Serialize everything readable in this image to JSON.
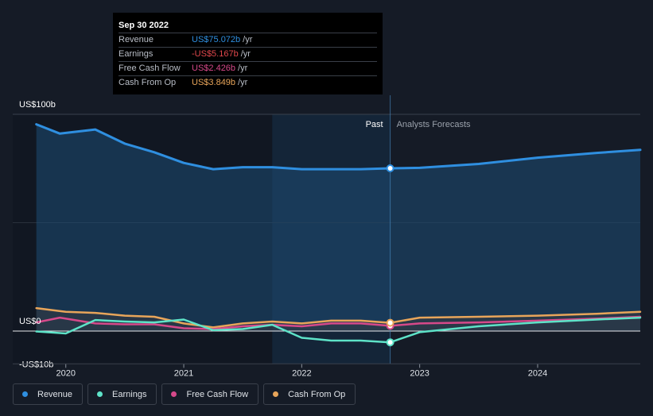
{
  "chart_data": {
    "type": "line",
    "y_axis_labels": [
      "US$100b",
      "US$0",
      "-US$10b"
    ],
    "ylim": [
      -10,
      100
    ],
    "region_labels": {
      "past": "Past",
      "forecast": "Analysts Forecasts"
    },
    "x_ticks": [
      {
        "label": "2020",
        "value": 2020.0
      },
      {
        "label": "2021",
        "value": 2021.0
      },
      {
        "label": "2022",
        "value": 2022.0
      },
      {
        "label": "2023",
        "value": 2023.0
      },
      {
        "label": "2024",
        "value": 2024.0
      }
    ],
    "xlim": [
      2019.55,
      2024.87
    ],
    "past_end": 2022.75,
    "highlight_start": 2021.75,
    "series": [
      {
        "name": "Revenue",
        "color": "#2f8fe0",
        "fill": true,
        "points": [
          [
            2019.75,
            95.4
          ],
          [
            2019.95,
            91.1
          ],
          [
            2020.25,
            93.0
          ],
          [
            2020.5,
            86.5
          ],
          [
            2020.75,
            82.5
          ],
          [
            2021.0,
            77.6
          ],
          [
            2021.25,
            74.7
          ],
          [
            2021.5,
            75.6
          ],
          [
            2021.75,
            75.6
          ],
          [
            2022.0,
            74.7
          ],
          [
            2022.25,
            74.7
          ],
          [
            2022.5,
            74.7
          ],
          [
            2022.75,
            75.1
          ],
          [
            2023.0,
            75.3
          ],
          [
            2023.5,
            77.1
          ],
          [
            2024.0,
            80.0
          ],
          [
            2024.5,
            82.2
          ],
          [
            2024.87,
            83.6
          ]
        ]
      },
      {
        "name": "Earnings",
        "color": "#5ee3c8",
        "points": [
          [
            2019.75,
            -0.2
          ],
          [
            2020.0,
            -1.1
          ],
          [
            2020.25,
            5.1
          ],
          [
            2020.5,
            4.4
          ],
          [
            2020.75,
            4.0
          ],
          [
            2021.0,
            5.3
          ],
          [
            2021.25,
            0.4
          ],
          [
            2021.5,
            0.9
          ],
          [
            2021.75,
            2.9
          ],
          [
            2022.0,
            -3.1
          ],
          [
            2022.25,
            -4.4
          ],
          [
            2022.5,
            -4.4
          ],
          [
            2022.75,
            -5.2
          ],
          [
            2023.0,
            -0.5
          ],
          [
            2023.5,
            2.2
          ],
          [
            2024.0,
            4.0
          ],
          [
            2024.5,
            5.3
          ],
          [
            2024.87,
            6.2
          ]
        ]
      },
      {
        "name": "Free Cash Flow",
        "color": "#d6498a",
        "points": [
          [
            2019.75,
            4.0
          ],
          [
            2019.95,
            6.2
          ],
          [
            2020.25,
            3.5
          ],
          [
            2020.5,
            3.1
          ],
          [
            2020.75,
            3.1
          ],
          [
            2021.0,
            1.3
          ],
          [
            2021.25,
            0.9
          ],
          [
            2021.5,
            2.2
          ],
          [
            2021.75,
            2.9
          ],
          [
            2022.0,
            2.2
          ],
          [
            2022.25,
            3.5
          ],
          [
            2022.5,
            3.5
          ],
          [
            2022.75,
            2.4
          ],
          [
            2023.0,
            3.5
          ],
          [
            2023.5,
            4.0
          ],
          [
            2024.0,
            4.8
          ],
          [
            2024.5,
            5.7
          ],
          [
            2024.87,
            6.6
          ]
        ]
      },
      {
        "name": "Cash From Op",
        "color": "#e8a55a",
        "points": [
          [
            2019.75,
            10.6
          ],
          [
            2020.0,
            8.9
          ],
          [
            2020.25,
            8.4
          ],
          [
            2020.5,
            7.1
          ],
          [
            2020.75,
            6.6
          ],
          [
            2021.0,
            3.5
          ],
          [
            2021.25,
            1.7
          ],
          [
            2021.5,
            3.5
          ],
          [
            2021.75,
            4.4
          ],
          [
            2022.0,
            3.5
          ],
          [
            2022.25,
            4.8
          ],
          [
            2022.5,
            4.8
          ],
          [
            2022.75,
            3.8
          ],
          [
            2023.0,
            6.2
          ],
          [
            2023.5,
            6.6
          ],
          [
            2024.0,
            7.1
          ],
          [
            2024.5,
            8.0
          ],
          [
            2024.87,
            8.9
          ]
        ]
      }
    ]
  },
  "tooltip": {
    "date": "Sep 30 2022",
    "rows": [
      {
        "label": "Revenue",
        "value": "US$75.072b",
        "unit": "/yr",
        "color": "#2f8fe0"
      },
      {
        "label": "Earnings",
        "value": "-US$5.167b",
        "unit": "/yr",
        "color": "#e0474c"
      },
      {
        "label": "Free Cash Flow",
        "value": "US$2.426b",
        "unit": "/yr",
        "color": "#d6498a"
      },
      {
        "label": "Cash From Op",
        "value": "US$3.849b",
        "unit": "/yr",
        "color": "#e8a55a"
      }
    ]
  },
  "legend": [
    {
      "label": "Revenue",
      "color": "#2f8fe0"
    },
    {
      "label": "Earnings",
      "color": "#5ee3c8"
    },
    {
      "label": "Free Cash Flow",
      "color": "#d6498a"
    },
    {
      "label": "Cash From Op",
      "color": "#e8a55a"
    }
  ]
}
